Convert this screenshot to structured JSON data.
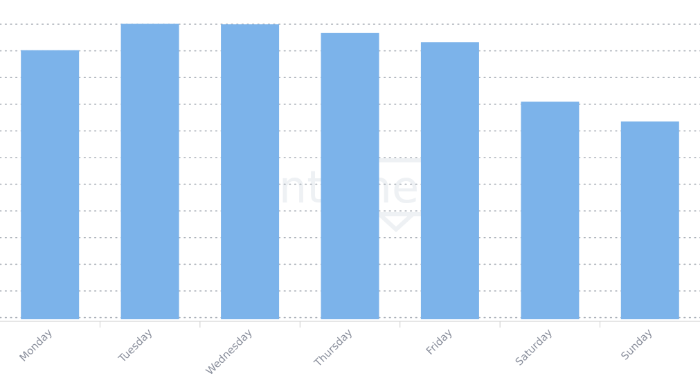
{
  "chart_data": {
    "type": "bar",
    "categories": [
      "Monday",
      "Tuesday",
      "Wednesday",
      "Thursday",
      "Friday",
      "Saturday",
      "Sunday"
    ],
    "values": [
      10.2,
      11.2,
      11.18,
      10.85,
      10.5,
      8.25,
      7.5
    ],
    "ylim": [
      0,
      11.5
    ],
    "grid": true,
    "gridline_count": 12,
    "bar_color": "#7cb3ea",
    "grid_color": "#a8aeb6",
    "axis_color": "#cccccc",
    "label_color": "#8a8f9c",
    "watermark": "sentione"
  }
}
